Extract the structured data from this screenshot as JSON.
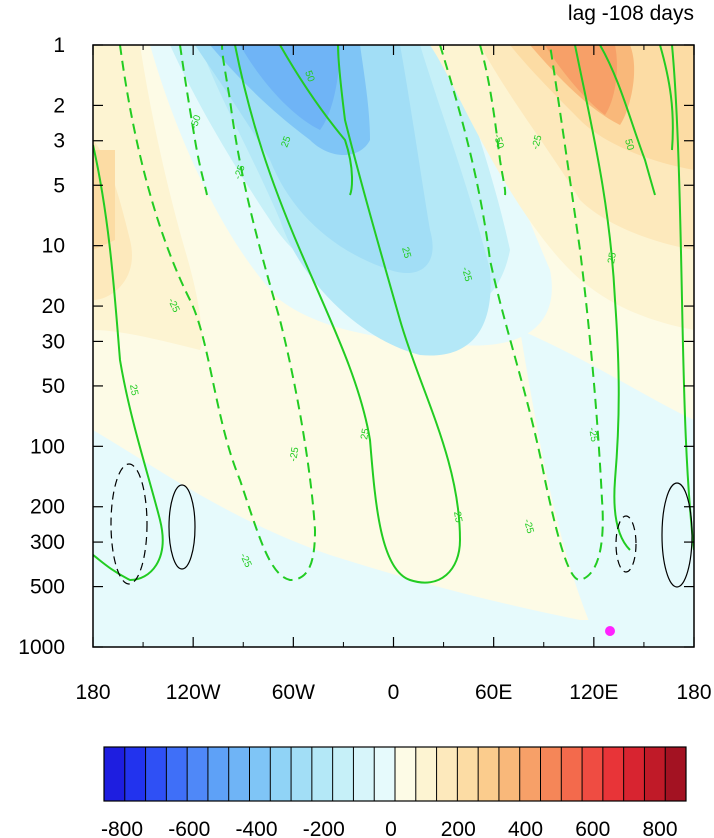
{
  "chart_data": {
    "type": "heatmap",
    "title": "lag -108 days",
    "x": {
      "range": [
        -180,
        180
      ],
      "ticks": [
        -180,
        -120,
        -60,
        0,
        60,
        120,
        180
      ],
      "tick_labels": [
        "180",
        "120W",
        "60W",
        "0",
        "60E",
        "120E",
        "180"
      ]
    },
    "y": {
      "scale": "log",
      "reversed": true,
      "range": [
        1,
        1000
      ],
      "ticks": [
        1,
        2,
        3,
        5,
        10,
        20,
        30,
        50,
        100,
        200,
        300,
        500,
        1000
      ],
      "tick_labels": [
        "1",
        "2",
        "3",
        "5",
        "10",
        "20",
        "30",
        "50",
        "100",
        "200",
        "300",
        "500",
        "1000"
      ]
    },
    "colorbar": {
      "levels": [
        -800,
        -750,
        -700,
        -650,
        -600,
        -550,
        -500,
        -450,
        -400,
        -350,
        -300,
        -250,
        -200,
        -150,
        -100,
        -50,
        0,
        50,
        100,
        150,
        200,
        250,
        300,
        350,
        400,
        450,
        500,
        550,
        600,
        650,
        700,
        750,
        800
      ],
      "labels": [
        "-800",
        "-600",
        "-400",
        "-200",
        "0",
        "200",
        "400",
        "600",
        "800"
      ],
      "colors": [
        "#1e1ee0",
        "#2233ee",
        "#2f50f5",
        "#3f6ff8",
        "#4f88f8",
        "#5ea1f7",
        "#6fb4f6",
        "#7fc5f6",
        "#90d3f6",
        "#a2def6",
        "#b4e8f7",
        "#c6f0f8",
        "#d7f5fa",
        "#e6fafc",
        "#fdfbe6",
        "#fdf4d2",
        "#fde9bc",
        "#fcdca4",
        "#fbcc8d",
        "#f9b87a",
        "#f7a068",
        "#f58658",
        "#f36a4c",
        "#ef4c42",
        "#e83438",
        "#d82430",
        "#c01a28",
        "#a31222"
      ],
      "below_zero_lightest": "#e6fafc",
      "above_zero_lightest": "#fdfbe6"
    },
    "contour_labels": [
      "50",
      "-50",
      "25",
      "-25"
    ],
    "contour_color": "#22cc22",
    "marker": {
      "lon": 130,
      "pressure": 850,
      "color": "#ff22ff"
    }
  }
}
